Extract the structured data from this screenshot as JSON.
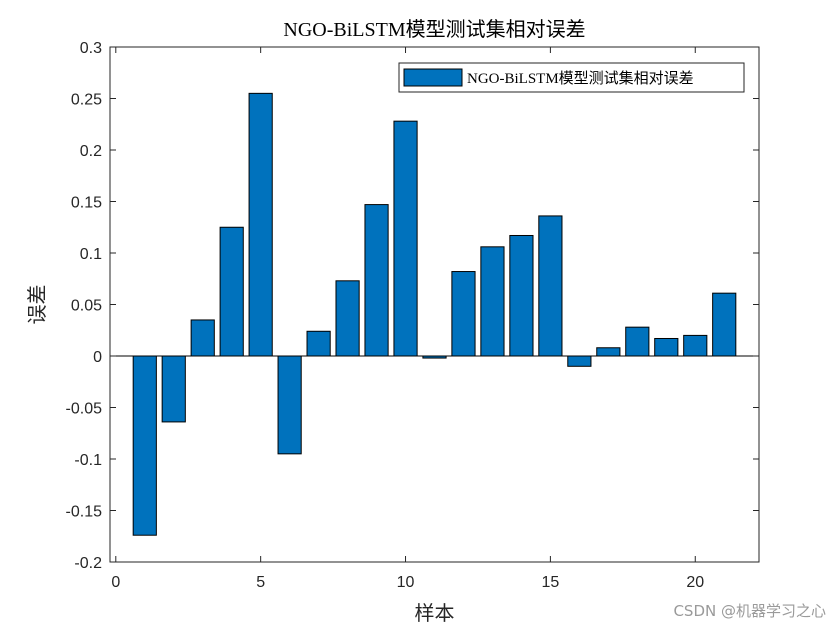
{
  "chart_data": {
    "type": "bar",
    "title": "NGO-BiLSTM模型测试集相对误差",
    "xlabel": "样本",
    "ylabel": "误差",
    "x": [
      1,
      2,
      3,
      4,
      5,
      6,
      7,
      8,
      9,
      10,
      11,
      12,
      13,
      14,
      15,
      16,
      17,
      18,
      19,
      20,
      21
    ],
    "series": [
      {
        "name": "NGO-BiLSTM模型测试集相对误差",
        "color": "#0072BD",
        "values": [
          -0.174,
          -0.064,
          0.035,
          0.125,
          0.255,
          -0.095,
          0.024,
          0.073,
          0.147,
          0.228,
          -0.002,
          0.082,
          0.106,
          0.117,
          0.136,
          -0.01,
          0.008,
          0.028,
          0.017,
          0.02,
          0.061
        ]
      }
    ],
    "xlim": [
      -0.2,
      22.2
    ],
    "ylim": [
      -0.2,
      0.3
    ],
    "xticks": [
      0,
      5,
      10,
      15,
      20
    ],
    "yticks": [
      -0.2,
      -0.15,
      -0.1,
      -0.05,
      0,
      0.05,
      0.1,
      0.15,
      0.2,
      0.25,
      0.3
    ],
    "ytick_labels": [
      "-0.2",
      "-0.15",
      "-0.1",
      "-0.05",
      "0",
      "0.05",
      "0.1",
      "0.15",
      "0.2",
      "0.25",
      "0.3"
    ],
    "grid": false,
    "legend_position": "top-right"
  },
  "watermark": "CSDN @机器学习之心"
}
